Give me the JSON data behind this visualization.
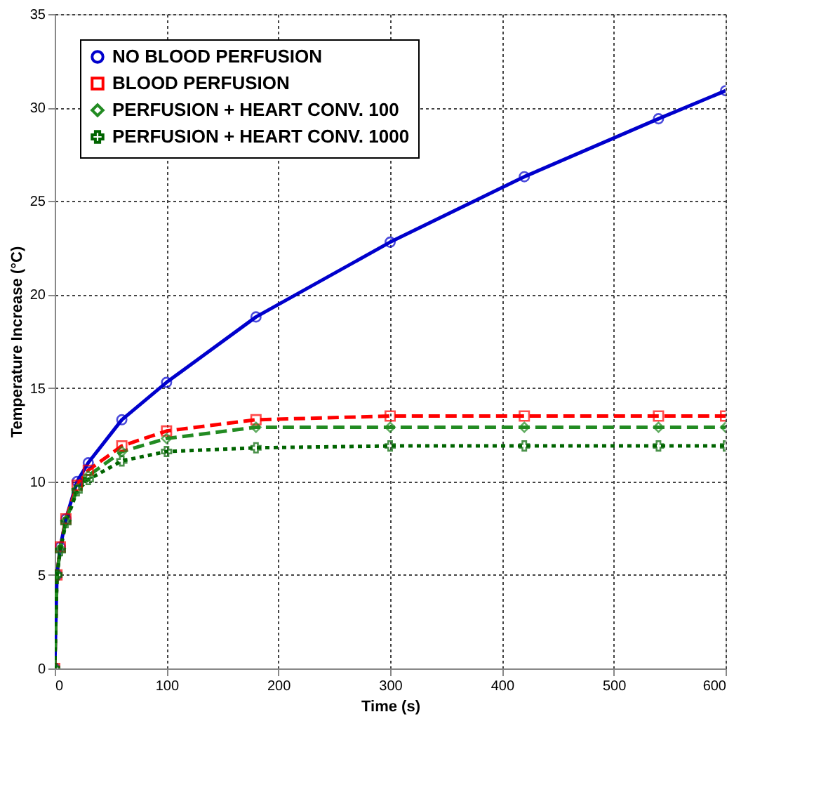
{
  "chart_data": {
    "type": "line",
    "xlabel": "Time (s)",
    "ylabel": "Temperature Increase (°C)",
    "xlim": [
      0,
      600
    ],
    "xticks": [
      0,
      100,
      200,
      300,
      400,
      500,
      600
    ],
    "ylim": [
      0,
      35
    ],
    "yticks": [
      0,
      5,
      10,
      15,
      20,
      25,
      30,
      35
    ],
    "grid": true,
    "legend": "top left",
    "series": [
      {
        "name": "NO BLOOD PERFUSION",
        "color": "#0000cc",
        "line_style": "solid",
        "marker": "circle",
        "x": [
          0,
          2,
          5,
          10,
          20,
          30,
          60,
          100,
          180,
          300,
          420,
          540,
          600
        ],
        "values": [
          0,
          5,
          6.5,
          8,
          10,
          11,
          13.3,
          15.3,
          18.8,
          22.8,
          26.3,
          29.4,
          30.9
        ]
      },
      {
        "name": "BLOOD PERFUSION",
        "color": "#ff0000",
        "line_style": "dashed",
        "marker": "square",
        "x": [
          0,
          2,
          5,
          10,
          20,
          30,
          60,
          100,
          180,
          300,
          420,
          540,
          600
        ],
        "values": [
          0,
          5,
          6.5,
          8,
          9.8,
          10.6,
          11.9,
          12.7,
          13.3,
          13.5,
          13.5,
          13.5,
          13.5
        ]
      },
      {
        "name": "PERFUSION + HEART CONV. 100",
        "color": "#228b22",
        "line_style": "dashed",
        "marker": "diamond",
        "x": [
          0,
          2,
          5,
          10,
          20,
          30,
          60,
          100,
          180,
          300,
          420,
          540,
          600
        ],
        "values": [
          0,
          5,
          6.4,
          7.9,
          9.6,
          10.3,
          11.6,
          12.3,
          12.9,
          12.9,
          12.9,
          12.9,
          12.9
        ]
      },
      {
        "name": "PERFUSION + HEART CONV. 1000",
        "color": "#006400",
        "line_style": "dotted",
        "marker": "cross",
        "x": [
          0,
          2,
          5,
          10,
          20,
          30,
          60,
          100,
          180,
          300,
          420,
          540,
          600
        ],
        "values": [
          0,
          5,
          6.3,
          7.8,
          9.5,
          10.1,
          11.1,
          11.6,
          11.8,
          11.9,
          11.9,
          11.9,
          11.9
        ]
      }
    ]
  }
}
